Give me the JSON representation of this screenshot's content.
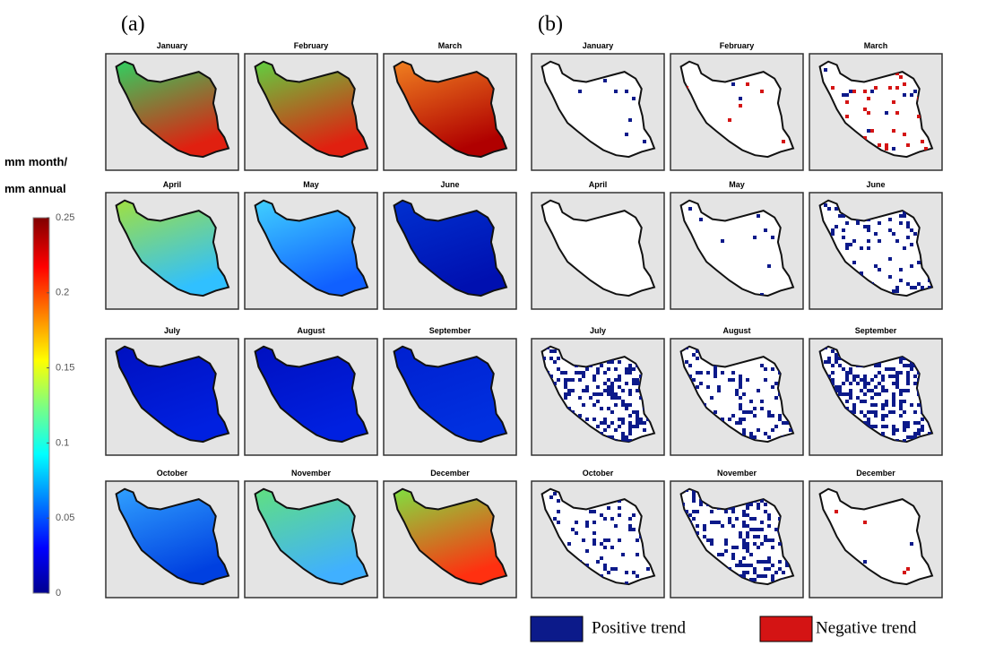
{
  "panel_labels": [
    "(a)",
    "(b)"
  ],
  "months": [
    "January",
    "February",
    "March",
    "April",
    "May",
    "June",
    "July",
    "August",
    "September",
    "October",
    "November",
    "December"
  ],
  "colorbar": {
    "label": [
      "mm month/",
      "mm annual"
    ],
    "range": [
      0,
      0.25
    ],
    "ticks": [
      0,
      0.05,
      0.1,
      0.15,
      0.2,
      0.25
    ]
  },
  "legend": [
    {
      "label": "Positive trend",
      "color": "#0c1a8a"
    },
    {
      "label": "Negative trend",
      "color": "#d41414"
    }
  ]
}
